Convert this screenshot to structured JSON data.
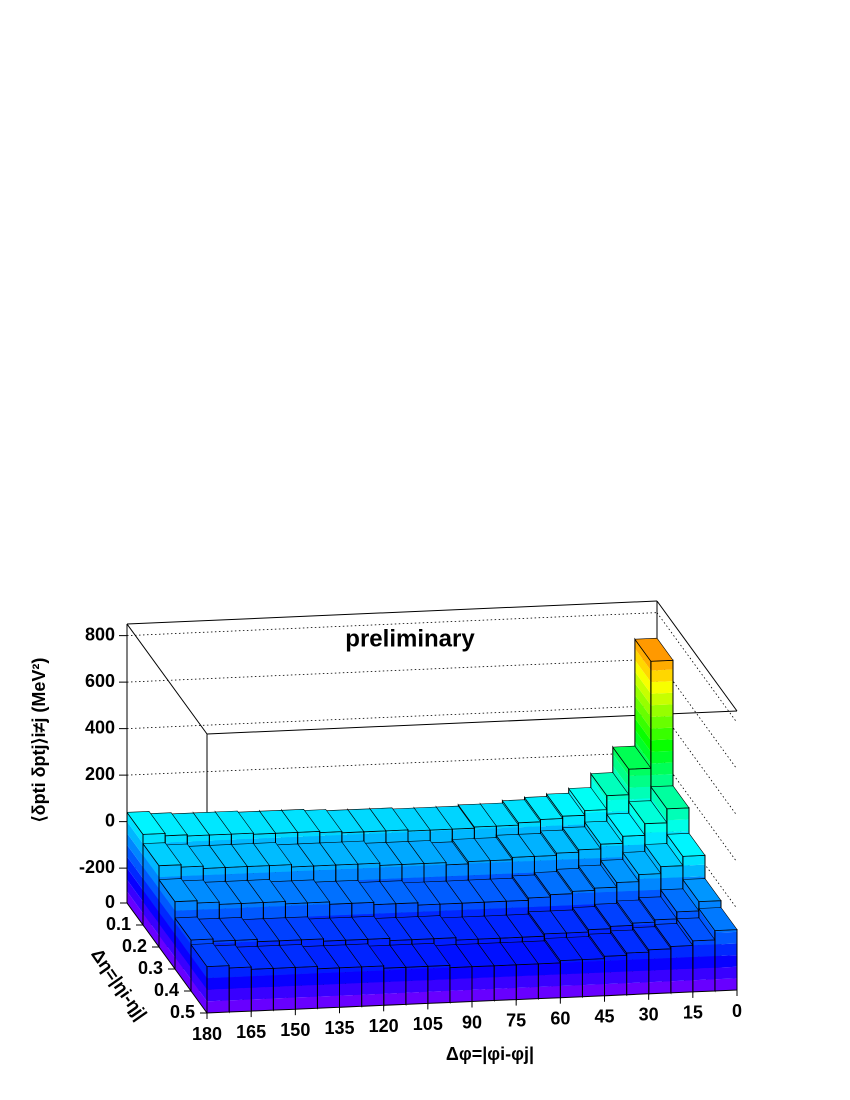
{
  "chart_data": {
    "type": "lego",
    "title": "preliminary",
    "x_label": "Δφ=|φi-φj|",
    "y_label": "Δη=|ηi-ηj|",
    "z_label": "⟨δpti δptj⟩i≠j (MeV²)",
    "xbins": [
      0,
      7.5,
      15,
      22.5,
      30,
      37.5,
      45,
      52.5,
      60,
      67.5,
      75,
      82.5,
      90,
      97.5,
      105,
      112.5,
      120,
      127.5,
      135,
      142.5,
      150,
      157.5,
      165,
      172.5,
      180
    ],
    "ybins": [
      0,
      0.1,
      0.2,
      0.3,
      0.4,
      0.5
    ],
    "values": [
      [
        690,
        230,
        120,
        60,
        40,
        30,
        20,
        10,
        10,
        5,
        5,
        5,
        10,
        10,
        10,
        15,
        20,
        20,
        20,
        25,
        25,
        25,
        30,
        40
      ],
      [
        150,
        90,
        40,
        10,
        -10,
        -20,
        -30,
        -30,
        -40,
        -40,
        -50,
        -40,
        -40,
        -40,
        -30,
        -30,
        -30,
        -30,
        -20,
        -20,
        -20,
        -20,
        -10,
        0
      ],
      [
        40,
        0,
        -30,
        -60,
        -80,
        -90,
        -100,
        -110,
        -120,
        -120,
        -120,
        -120,
        -120,
        -110,
        -110,
        -100,
        -100,
        -90,
        -90,
        -80,
        -80,
        -80,
        -70,
        -60
      ],
      [
        -60,
        -100,
        -130,
        -140,
        -150,
        -160,
        -170,
        -170,
        -180,
        -180,
        -180,
        -180,
        -170,
        -170,
        -170,
        -160,
        -160,
        -160,
        -150,
        -150,
        -150,
        -140,
        -140,
        -130
      ],
      [
        -90,
        -130,
        -150,
        -160,
        -170,
        -180,
        -190,
        -190,
        -200,
        -200,
        -200,
        -200,
        -200,
        -190,
        -190,
        -190,
        -180,
        -180,
        -180,
        -170,
        -170,
        -170,
        -160,
        -150
      ]
    ],
    "xlim": [
      0,
      180
    ],
    "ylim": [
      0,
      0.5
    ],
    "zlim": [
      -350,
      850
    ],
    "xticks": [
      0,
      15,
      30,
      45,
      60,
      75,
      90,
      105,
      120,
      135,
      150,
      165,
      180
    ],
    "yticks": [
      0,
      0.1,
      0.2,
      0.3,
      0.4,
      0.5
    ],
    "zticks": [
      -200,
      0,
      200,
      400,
      600,
      800
    ],
    "grid": true
  }
}
